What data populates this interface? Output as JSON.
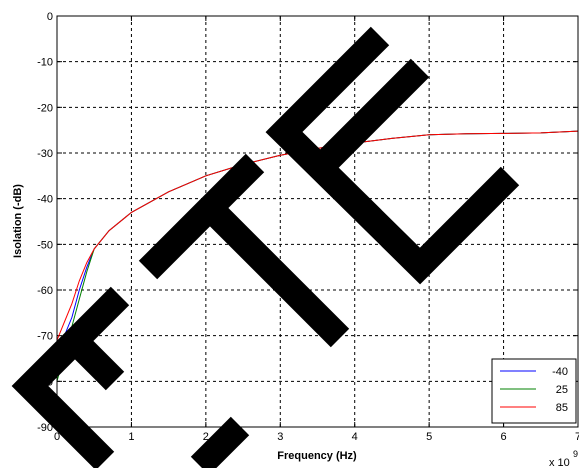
{
  "chart_data": {
    "type": "line",
    "xlabel": "Frequency (Hz)",
    "ylabel": "Isolation (-dB)",
    "x_exponent_label": "x 10",
    "x_exponent_power": "9",
    "xlim": [
      0,
      7
    ],
    "ylim": [
      -90,
      0
    ],
    "xticks": [
      "0",
      "1",
      "2",
      "3",
      "4",
      "5",
      "6",
      "7"
    ],
    "yticks": [
      "0",
      "-10",
      "-20",
      "-30",
      "-40",
      "-50",
      "-60",
      "-70",
      "-80",
      "-90"
    ],
    "grid": true,
    "legend_position": "bottom-right",
    "series": [
      {
        "name": "-40",
        "color": "#0000ff",
        "x": [
          0,
          0.05,
          0.1,
          0.2,
          0.3,
          0.4,
          0.5,
          0.7,
          1.0,
          1.5,
          2.0,
          2.5,
          3.0,
          3.5,
          4.0,
          4.5,
          5.0,
          5.5,
          6.0,
          6.5,
          7.0
        ],
        "y": [
          -73,
          -72,
          -70,
          -66,
          -60,
          -55,
          -51,
          -47,
          -43,
          -38.5,
          -35,
          -32.5,
          -30.5,
          -29,
          -27.8,
          -26.8,
          -26,
          -25.8,
          -25.7,
          -25.6,
          -25.2
        ]
      },
      {
        "name": "25",
        "color": "#008000",
        "x": [
          0,
          0.05,
          0.1,
          0.2,
          0.3,
          0.4,
          0.5,
          0.7,
          1.0,
          1.5,
          2.0,
          2.5,
          3.0,
          3.5,
          4.0,
          4.5,
          5.0,
          5.5,
          6.0,
          6.5,
          7.0
        ],
        "y": [
          -80,
          -77,
          -74,
          -68,
          -62,
          -56,
          -51,
          -47,
          -43,
          -38.5,
          -35,
          -32.5,
          -30.5,
          -29,
          -27.8,
          -26.8,
          -26,
          -25.8,
          -25.7,
          -25.6,
          -25.2
        ]
      },
      {
        "name": "85",
        "color": "#ff0000",
        "x": [
          0,
          0.05,
          0.1,
          0.2,
          0.3,
          0.4,
          0.5,
          0.7,
          1.0,
          1.5,
          2.0,
          2.5,
          3.0,
          3.5,
          4.0,
          4.5,
          5.0,
          5.5,
          6.0,
          6.5,
          7.0
        ],
        "y": [
          -71,
          -69,
          -67,
          -63,
          -58,
          -54,
          -51,
          -47,
          -43,
          -38.5,
          -35,
          -32.5,
          -30.5,
          -29,
          -27.8,
          -26.8,
          -26,
          -25.8,
          -25.7,
          -25.6,
          -25.2
        ]
      }
    ]
  },
  "watermark": {
    "text": "ETE",
    "color": "#000000"
  }
}
